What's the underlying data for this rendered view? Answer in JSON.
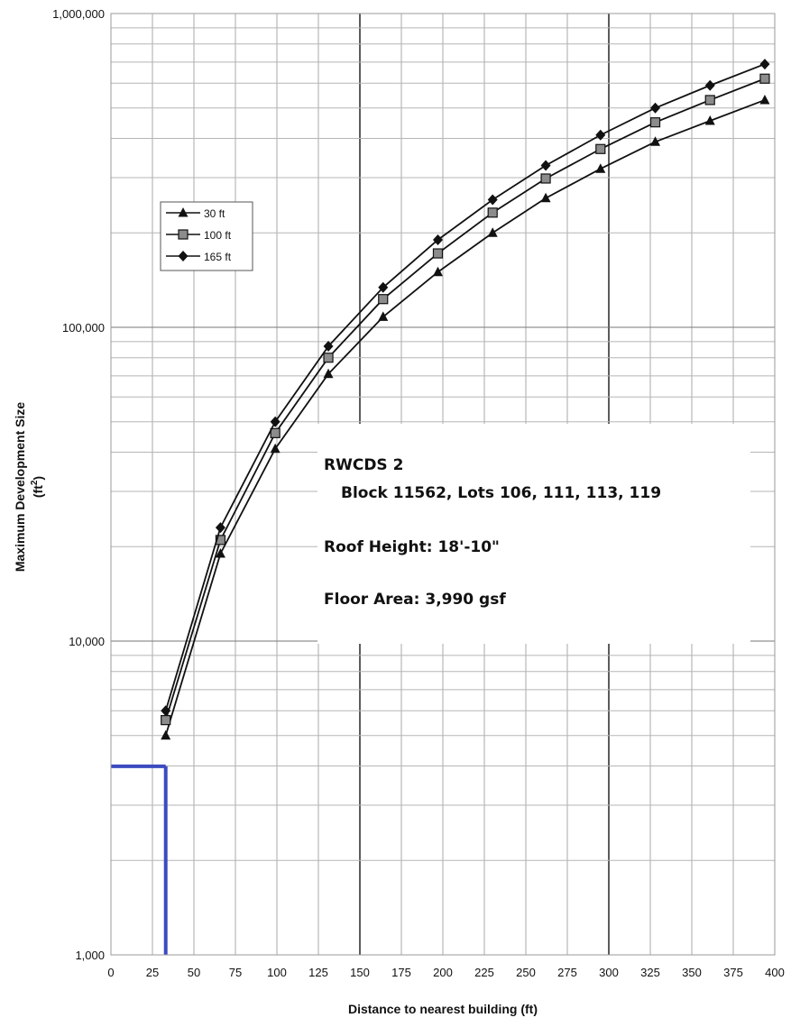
{
  "chart_data": {
    "type": "line",
    "xlabel": "Distance to nearest building (ft)",
    "ylabel": "Maximum Development Size",
    "ylabel_unit_base": "(ft",
    "ylabel_unit_sup": "2",
    "ylabel_unit_close": ")",
    "yscale": "log",
    "xlim": [
      0,
      400
    ],
    "ylim": [
      1000,
      1000000
    ],
    "grid": true,
    "legend_position": "upper-left",
    "x_ticks": [
      0,
      25,
      50,
      75,
      100,
      125,
      150,
      175,
      200,
      225,
      250,
      275,
      300,
      325,
      350,
      375,
      400
    ],
    "x_tick_labels": [
      "0",
      "25",
      "50",
      "75",
      "100",
      "125",
      "150",
      "175",
      "200",
      "225",
      "250",
      "275",
      "300",
      "325",
      "350",
      "375",
      "400"
    ],
    "y_ticks": [
      1000,
      10000,
      100000,
      1000000
    ],
    "y_tick_labels": [
      "1,000",
      "10,000",
      "100,000",
      "1,000,000"
    ],
    "x": [
      33,
      66,
      99,
      131,
      164,
      197,
      230,
      262,
      295,
      328,
      361,
      394
    ],
    "series": [
      {
        "name": "30 ft",
        "marker": "triangle",
        "color": "#111111",
        "values": [
          5000,
          19000,
          41000,
          71000,
          108000,
          150000,
          200000,
          258000,
          320000,
          390000,
          455000,
          530000
        ]
      },
      {
        "name": "100 ft",
        "marker": "square",
        "color": "#111111",
        "marker_fill": "#8c8c8c",
        "values": [
          5600,
          21000,
          46000,
          80000,
          123000,
          172000,
          232000,
          298000,
          370000,
          450000,
          530000,
          620000
        ]
      },
      {
        "name": "165 ft",
        "marker": "diamond",
        "color": "#111111",
        "values": [
          6000,
          23000,
          50000,
          87000,
          134000,
          190000,
          255000,
          328000,
          410000,
          500000,
          590000,
          690000
        ]
      }
    ],
    "annotation": {
      "lines": [
        "RWCDS 2",
        "Block 11562, Lots 106, 111, 113, 119",
        "Roof Height: 18'-10\"",
        "Floor Area: 3,990 gsf"
      ]
    },
    "reference_point": {
      "x": 33,
      "y": 3990,
      "color": "#3b4bc0"
    }
  }
}
